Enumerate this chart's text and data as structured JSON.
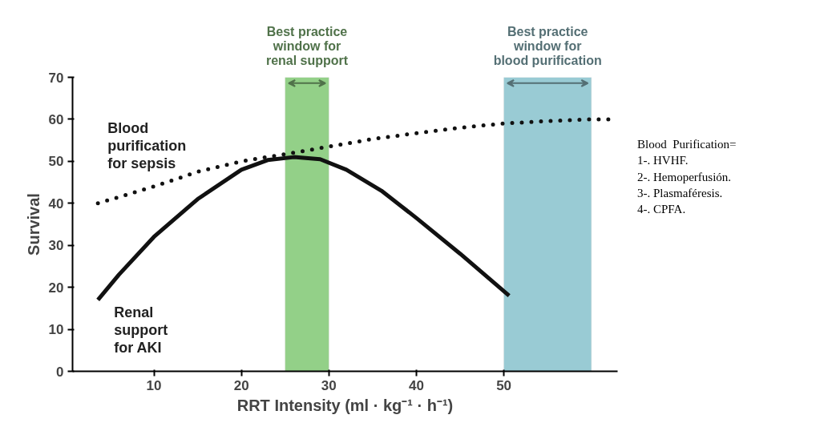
{
  "chart_data": {
    "type": "line",
    "xlabel": "RRT Intensity (ml · kg⁻¹ · h⁻¹)",
    "ylabel": "Survival",
    "xlim": [
      0.7,
      63
    ],
    "ylim": [
      0,
      70
    ],
    "xticks": [
      10,
      20,
      30,
      40,
      50
    ],
    "yticks": [
      0,
      10,
      20,
      30,
      40,
      50,
      60,
      70
    ],
    "grid": false,
    "series": [
      {
        "name": "Blood\npurification\nfor sepsis",
        "color": "#111111",
        "line_style": "dotted",
        "x": [
          3.6,
          10,
          15,
          20,
          25,
          30,
          35,
          40,
          45,
          50,
          55,
          60,
          63
        ],
        "values": [
          40,
          44,
          47.5,
          50,
          51.7,
          53.5,
          55.3,
          56.7,
          58,
          59,
          59.6,
          60,
          60
        ]
      },
      {
        "name": "Renal\nsupport\nfor AKI",
        "color": "#111111",
        "line_style": "solid",
        "x": [
          3.6,
          6,
          10,
          15,
          20,
          23,
          26,
          29,
          32,
          36,
          40,
          45,
          50.6
        ],
        "values": [
          17,
          23,
          32,
          41,
          48,
          50.3,
          51,
          50.5,
          48,
          43,
          36.5,
          28,
          18
        ]
      }
    ],
    "bands": [
      {
        "axis": "x",
        "from": 25,
        "to": 30,
        "label": "Best practice\nwindow for\nrenal support",
        "color": "#93d088"
      },
      {
        "axis": "x",
        "from": 50,
        "to": 60,
        "label": "Best practice\nwindow for\nblood purification",
        "color": "#99cbd4"
      }
    ],
    "annotations": [
      "Blood  Purification=\n1-. HVHF.\n2-. Hemoperfusión.\n3-. Plasmaféresis.\n4-. CPFA."
    ]
  }
}
